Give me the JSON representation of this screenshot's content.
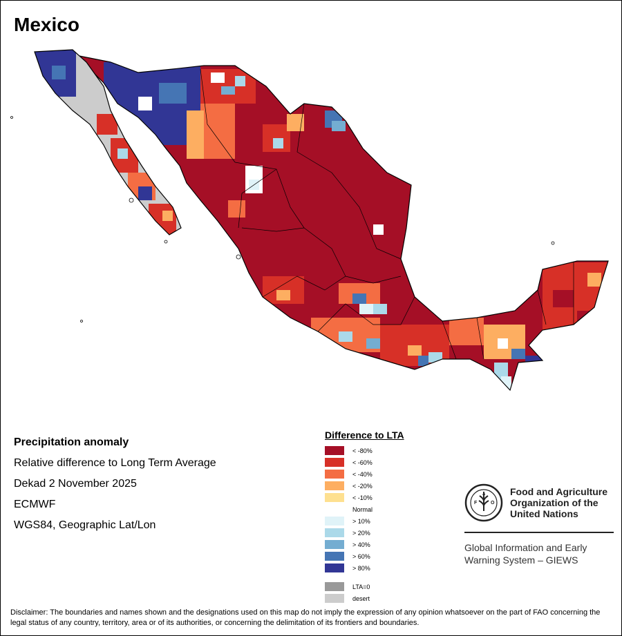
{
  "map": {
    "title": "Mexico",
    "info": {
      "line1": "Precipitation anomaly",
      "line2": "Relative difference to Long Term Average",
      "line3": "Dekad 2 November 2025",
      "line4": "ECMWF",
      "line5": "WGS84, Geographic Lat/Lon"
    },
    "legend": {
      "title": "Difference to LTA",
      "classes": [
        {
          "label": "< -80%",
          "color": "#a50f26"
        },
        {
          "label": "< -60%",
          "color": "#d73027"
        },
        {
          "label": "< -40%",
          "color": "#f46d43"
        },
        {
          "label": "< -20%",
          "color": "#fdae61"
        },
        {
          "label": "< -10%",
          "color": "#fee090"
        },
        {
          "label": "Normal",
          "color": "#ffffff"
        },
        {
          "label": "> 10%",
          "color": "#e0f3f8"
        },
        {
          "label": "> 20%",
          "color": "#abd9e9"
        },
        {
          "label": "> 40%",
          "color": "#74add1"
        },
        {
          "label": "> 60%",
          "color": "#4575b4"
        },
        {
          "label": "> 80%",
          "color": "#313695"
        }
      ],
      "extra": [
        {
          "label": "LTA=0",
          "color": "#999999"
        },
        {
          "label": "desert",
          "color": "#cccccc"
        }
      ]
    },
    "fao": {
      "name_line1": "Food and Agriculture",
      "name_line2": "Organization of the",
      "name_line3": "United Nations",
      "system_line1": "Global Information and Early",
      "system_line2": "Warning System – GIEWS",
      "logo_text": "FIAT PANIS"
    },
    "disclaimer": "Disclaimer: The boundaries and names shown and the designations used on this map do not imply the expression of any opinion whatsoever on the part of FAO concerning the legal status of any country, territory, area or of its authorities, or concerning the delimitation of its frontiers and boundaries."
  }
}
